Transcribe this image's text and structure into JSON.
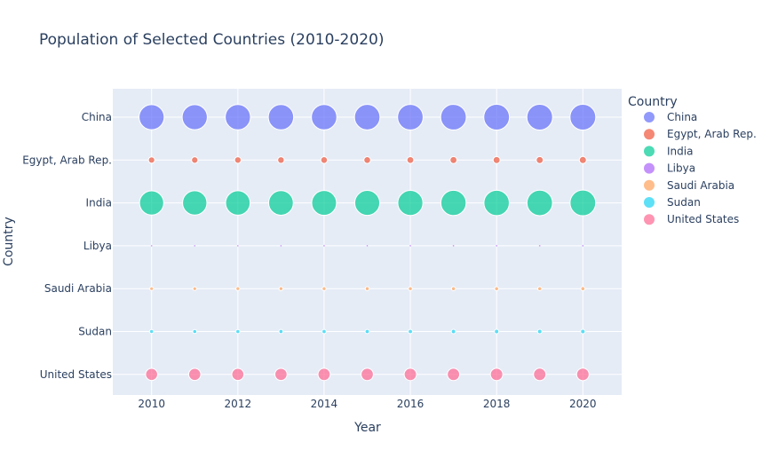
{
  "chart_data": {
    "type": "scatter",
    "title": "Population of Selected Countries (2010-2020)",
    "xlabel": "Year",
    "ylabel": "Country",
    "xlim": [
      2009.1,
      2020.9
    ],
    "x_ticks": [
      2010,
      2012,
      2014,
      2016,
      2018,
      2020
    ],
    "x": [
      2010,
      2011,
      2012,
      2013,
      2014,
      2015,
      2016,
      2017,
      2018,
      2019,
      2020
    ],
    "categories": [
      "China",
      "Egypt, Arab Rep.",
      "India",
      "Libya",
      "Saudi Arabia",
      "Sudan",
      "United States"
    ],
    "legend_title": "Country",
    "legend_position": "right",
    "grid": true,
    "size_encoding": "population",
    "series": [
      {
        "name": "China",
        "color": "#636efa",
        "values": [
          1337705000,
          1345035000,
          1354190000,
          1363240000,
          1371860000,
          1379860000,
          1387790000,
          1396215000,
          1402760000,
          1407745000,
          1411100000
        ]
      },
      {
        "name": "Egypt, Arab Rep.",
        "color": "#ef553b",
        "values": [
          87252413,
          89200054,
          91240376,
          93377890,
          95592324,
          97723799,
          99784030,
          101789386,
          103740765,
          105618671,
          107465134
        ]
      },
      {
        "name": "India",
        "color": "#00cc96",
        "values": [
          1240613620,
          1257621191,
          1274487215,
          1291132063,
          1307246509,
          1322866505,
          1338636340,
          1354195680,
          1369003306,
          1383112050,
          1396387127
        ]
      },
      {
        "name": "Libya",
        "color": "#ab63fa",
        "values": [
          6197667,
          6053750,
          6066084,
          6216157,
          6275004,
          6325223,
          6388864,
          6462061,
          6543863,
          6626785,
          6678567
        ]
      },
      {
        "name": "Saudi Arabia",
        "color": "#ffa15a",
        "values": [
          29411929,
          30150834,
          30821543,
          31482498,
          32125564,
          32749848,
          33416270,
          34193122,
          34140662,
          34268529,
          35997107
        ]
      },
      {
        "name": "Sudan",
        "color": "#19d3f3",
        "values": [
          33739933,
          34611317,
          35594095,
          36660775,
          37711914,
          38717734,
          39657470,
          40533114,
          41421020,
          42303101,
          43232678
        ]
      },
      {
        "name": "United States",
        "color": "#ff6692",
        "values": [
          309327143,
          311583481,
          313877662,
          316059947,
          318386329,
          320738994,
          323071755,
          325122128,
          326838199,
          328329953,
          331501080
        ]
      }
    ]
  }
}
